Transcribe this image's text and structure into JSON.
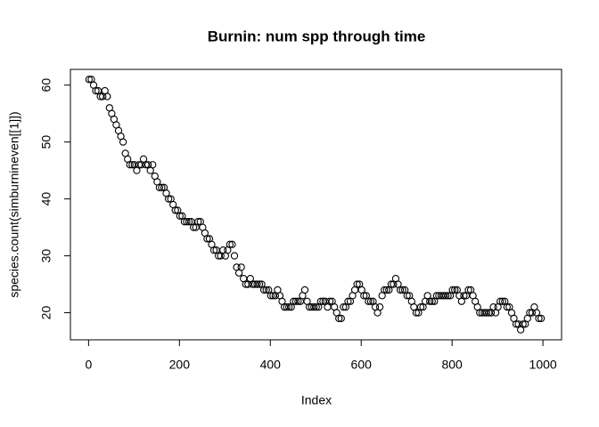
{
  "chart_data": {
    "type": "scatter",
    "title": "Burnin: num spp through time",
    "x_label": "Index",
    "y_label": "species.count(simburnineven[[1]])",
    "color": "#000000",
    "x": [
      1,
      6,
      11,
      16,
      21,
      26,
      31,
      36,
      41,
      46,
      51,
      56,
      61,
      66,
      71,
      76,
      81,
      86,
      91,
      96,
      101,
      106,
      111,
      116,
      121,
      126,
      131,
      136,
      141,
      146,
      151,
      156,
      161,
      166,
      171,
      176,
      181,
      186,
      191,
      196,
      201,
      206,
      211,
      216,
      221,
      226,
      231,
      236,
      241,
      246,
      251,
      256,
      261,
      266,
      271,
      276,
      281,
      286,
      291,
      296,
      301,
      306,
      311,
      316,
      321,
      326,
      331,
      336,
      341,
      346,
      351,
      356,
      361,
      366,
      371,
      376,
      381,
      386,
      391,
      396,
      401,
      406,
      411,
      416,
      421,
      426,
      431,
      436,
      441,
      446,
      451,
      456,
      461,
      466,
      471,
      476,
      481,
      486,
      491,
      496,
      501,
      506,
      511,
      516,
      521,
      526,
      531,
      536,
      541,
      546,
      551,
      556,
      561,
      566,
      571,
      576,
      581,
      586,
      591,
      596,
      601,
      606,
      611,
      616,
      621,
      626,
      631,
      636,
      641,
      646,
      651,
      656,
      661,
      666,
      671,
      676,
      681,
      686,
      691,
      696,
      701,
      706,
      711,
      716,
      721,
      726,
      731,
      736,
      741,
      746,
      751,
      756,
      761,
      766,
      771,
      776,
      781,
      786,
      791,
      796,
      801,
      806,
      811,
      816,
      821,
      826,
      831,
      836,
      841,
      846,
      851,
      856,
      861,
      866,
      871,
      876,
      881,
      886,
      891,
      896,
      901,
      906,
      911,
      916,
      921,
      926,
      931,
      936,
      941,
      946,
      951,
      956,
      961,
      966,
      971,
      976,
      981,
      986,
      991,
      996
    ],
    "values": [
      61,
      61,
      60,
      59,
      59,
      58,
      58,
      59,
      58,
      56,
      55,
      54,
      53,
      52,
      51,
      50,
      48,
      47,
      46,
      46,
      46,
      45,
      46,
      46,
      47,
      46,
      46,
      45,
      46,
      44,
      43,
      42,
      42,
      42,
      41,
      40,
      40,
      39,
      38,
      38,
      37,
      37,
      36,
      36,
      36,
      36,
      35,
      35,
      36,
      36,
      35,
      34,
      33,
      33,
      32,
      31,
      31,
      30,
      30,
      31,
      30,
      31,
      32,
      32,
      30,
      28,
      27,
      28,
      26,
      25,
      25,
      26,
      25,
      25,
      25,
      25,
      25,
      24,
      24,
      24,
      23,
      23,
      23,
      24,
      23,
      22,
      21,
      21,
      21,
      21,
      22,
      22,
      22,
      22,
      23,
      24,
      22,
      21,
      21,
      21,
      21,
      21,
      22,
      22,
      22,
      21,
      22,
      22,
      21,
      20,
      19,
      19,
      21,
      21,
      22,
      22,
      23,
      24,
      25,
      25,
      24,
      23,
      23,
      22,
      22,
      22,
      21,
      20,
      21,
      23,
      24,
      24,
      24,
      25,
      25,
      26,
      25,
      24,
      24,
      24,
      23,
      23,
      22,
      21,
      20,
      20,
      21,
      21,
      22,
      23,
      22,
      22,
      22,
      23,
      23,
      23,
      23,
      23,
      23,
      23,
      24,
      24,
      24,
      23,
      22,
      23,
      23,
      24,
      24,
      23,
      22,
      21,
      20,
      20,
      20,
      20,
      20,
      20,
      21,
      20,
      21,
      22,
      22,
      22,
      21,
      21,
      20,
      19,
      18,
      18,
      17,
      18,
      18,
      19,
      20,
      20,
      21,
      20,
      19,
      19
    ],
    "xlim": [
      -39.96,
      1040.96
    ],
    "ylim": [
      15.24,
      62.76
    ],
    "xticks": [
      0,
      200,
      400,
      600,
      800,
      1000
    ],
    "yticks": [
      20,
      30,
      40,
      50,
      60
    ]
  }
}
